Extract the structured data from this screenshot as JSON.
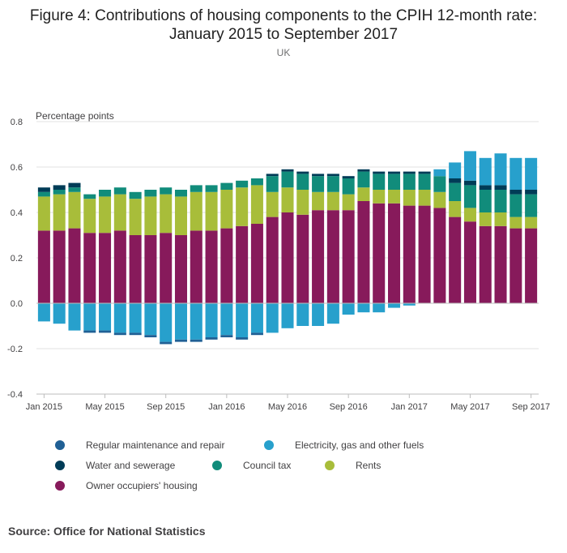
{
  "title_line1": "Figure 4: Contributions of housing components to the CPIH 12-month rate:",
  "title_line2": "January 2015 to September 2017",
  "subtitle": "UK",
  "source": "Source: Office for National Statistics",
  "colors": {
    "regular_maintenance": "#206095",
    "electricity": "#27a0cc",
    "water": "#003c57",
    "council_tax": "#118c7b",
    "rents": "#a8bd3a",
    "owner_occupiers": "#871a5b"
  },
  "chart_data": {
    "type": "bar",
    "stacked": true,
    "ylabel": "Percentage points",
    "ylim": [
      -0.4,
      0.8
    ],
    "yticks": [
      -0.4,
      -0.2,
      0.0,
      0.2,
      0.4,
      0.6,
      0.8
    ],
    "grid": true,
    "legend_position": "bottom",
    "categories": [
      "Jan 2015",
      "Feb 2015",
      "Mar 2015",
      "Apr 2015",
      "May 2015",
      "Jun 2015",
      "Jul 2015",
      "Aug 2015",
      "Sep 2015",
      "Oct 2015",
      "Nov 2015",
      "Dec 2015",
      "Jan 2016",
      "Feb 2016",
      "Mar 2016",
      "Apr 2016",
      "May 2016",
      "Jun 2016",
      "Jul 2016",
      "Aug 2016",
      "Sep 2016",
      "Oct 2016",
      "Nov 2016",
      "Dec 2016",
      "Jan 2017",
      "Feb 2017",
      "Mar 2017",
      "Apr 2017",
      "May 2017",
      "Jun 2017",
      "Jul 2017",
      "Aug 2017",
      "Sep 2017"
    ],
    "xtick_labels": [
      {
        "index": 0,
        "label": "Jan 2015"
      },
      {
        "index": 4,
        "label": "May 2015"
      },
      {
        "index": 8,
        "label": "Sep 2015"
      },
      {
        "index": 12,
        "label": "Jan 2016"
      },
      {
        "index": 16,
        "label": "May 2016"
      },
      {
        "index": 20,
        "label": "Sep 2016"
      },
      {
        "index": 24,
        "label": "Jan 2017"
      },
      {
        "index": 28,
        "label": "May 2017"
      },
      {
        "index": 32,
        "label": "Sep 2017"
      }
    ],
    "series": [
      {
        "key": "owner_occupiers",
        "name": "Owner occupiers' housing",
        "values": [
          0.32,
          0.32,
          0.33,
          0.31,
          0.31,
          0.32,
          0.3,
          0.3,
          0.31,
          0.3,
          0.32,
          0.32,
          0.33,
          0.34,
          0.35,
          0.38,
          0.4,
          0.39,
          0.41,
          0.41,
          0.41,
          0.45,
          0.44,
          0.44,
          0.43,
          0.43,
          0.42,
          0.38,
          0.36,
          0.34,
          0.34,
          0.33,
          0.33
        ]
      },
      {
        "key": "rents",
        "name": "Rents",
        "values": [
          0.15,
          0.16,
          0.16,
          0.15,
          0.16,
          0.16,
          0.16,
          0.17,
          0.17,
          0.17,
          0.17,
          0.17,
          0.17,
          0.17,
          0.17,
          0.11,
          0.11,
          0.11,
          0.08,
          0.08,
          0.07,
          0.06,
          0.06,
          0.06,
          0.07,
          0.07,
          0.07,
          0.07,
          0.06,
          0.06,
          0.06,
          0.05,
          0.05
        ]
      },
      {
        "key": "council_tax",
        "name": "Council tax",
        "values": [
          0.02,
          0.02,
          0.02,
          0.02,
          0.03,
          0.03,
          0.03,
          0.03,
          0.03,
          0.03,
          0.03,
          0.03,
          0.03,
          0.03,
          0.03,
          0.07,
          0.07,
          0.07,
          0.07,
          0.07,
          0.07,
          0.07,
          0.07,
          0.07,
          0.07,
          0.07,
          0.07,
          0.08,
          0.1,
          0.1,
          0.1,
          0.1,
          0.1
        ]
      },
      {
        "key": "water",
        "name": "Water and sewerage",
        "values": [
          0.02,
          0.02,
          0.02,
          0.0,
          0.0,
          0.0,
          0.0,
          0.0,
          0.0,
          0.0,
          0.0,
          0.0,
          0.0,
          0.0,
          0.0,
          0.01,
          0.01,
          0.01,
          0.01,
          0.01,
          0.01,
          0.01,
          0.01,
          0.01,
          0.01,
          0.01,
          0.0,
          0.02,
          0.02,
          0.02,
          0.02,
          0.02,
          0.02
        ]
      },
      {
        "key": "electricity",
        "name": "Electricity, gas and other fuels",
        "values": [
          -0.08,
          -0.09,
          -0.12,
          -0.12,
          -0.12,
          -0.13,
          -0.13,
          -0.14,
          -0.17,
          -0.16,
          -0.16,
          -0.15,
          -0.14,
          -0.15,
          -0.13,
          -0.13,
          -0.11,
          -0.1,
          -0.1,
          -0.09,
          -0.05,
          -0.04,
          -0.04,
          -0.02,
          -0.01,
          0.0,
          0.03,
          0.07,
          0.13,
          0.12,
          0.14,
          0.14,
          0.14
        ]
      },
      {
        "key": "regular_maintenance",
        "name": "Regular maintenance and repair",
        "values": [
          0.0,
          0.0,
          0.0,
          -0.01,
          -0.01,
          -0.01,
          -0.01,
          -0.01,
          -0.01,
          -0.01,
          -0.01,
          -0.01,
          -0.01,
          -0.01,
          -0.01,
          0.0,
          0.0,
          0.0,
          0.0,
          0.0,
          0.0,
          0.0,
          0.0,
          0.0,
          0.0,
          0.0,
          0.0,
          0.0,
          0.0,
          0.0,
          0.0,
          0.0,
          0.0
        ]
      }
    ],
    "legend": [
      {
        "key": "regular_maintenance",
        "name": "Regular maintenance and repair"
      },
      {
        "key": "electricity",
        "name": "Electricity, gas and other fuels"
      },
      {
        "key": "water",
        "name": "Water and sewerage"
      },
      {
        "key": "council_tax",
        "name": "Council tax"
      },
      {
        "key": "rents",
        "name": "Rents"
      },
      {
        "key": "owner_occupiers",
        "name": "Owner occupiers' housing"
      }
    ]
  }
}
